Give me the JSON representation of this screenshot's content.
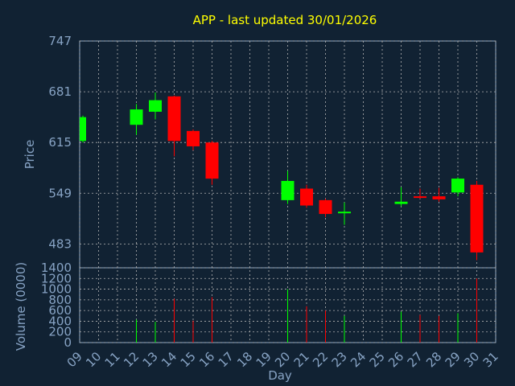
{
  "chart_data": {
    "type": "candlestick",
    "title": "APP - last updated 30/01/2026",
    "colors": {
      "background": "#112233",
      "grid": "#b4b4b4",
      "axis_text": "#87a3c4",
      "title": "#ffff00",
      "up": "#00ff00",
      "down": "#ff0000"
    },
    "price_panel": {
      "ylabel": "Price",
      "ylim": [
        452,
        747
      ],
      "yticks": [
        747,
        681,
        615,
        549,
        483
      ]
    },
    "volume_panel": {
      "ylabel": "Volume (0000)",
      "ylim": [
        0,
        1400
      ],
      "yticks": [
        1400,
        1200,
        1000,
        800,
        600,
        400,
        200,
        0
      ]
    },
    "x_axis": {
      "xlabel": "Day",
      "tick_labels": [
        "09",
        "10",
        "11",
        "12",
        "13",
        "14",
        "15",
        "16",
        "17",
        "18",
        "19",
        "20",
        "21",
        "22",
        "23",
        "24",
        "25",
        "26",
        "27",
        "28",
        "29",
        "30",
        "31"
      ]
    },
    "candles": [
      {
        "day": 9,
        "open": 617,
        "close": 648,
        "high": 650,
        "low": 615,
        "volume": 0
      },
      {
        "day": 12,
        "open": 638,
        "close": 658,
        "high": 665,
        "low": 625,
        "volume": 430
      },
      {
        "day": 13,
        "open": 655,
        "close": 670,
        "high": 680,
        "low": 645,
        "volume": 390
      },
      {
        "day": 14,
        "open": 675,
        "close": 617,
        "high": 676,
        "low": 597,
        "volume": 820
      },
      {
        "day": 15,
        "open": 630,
        "close": 610,
        "high": 632,
        "low": 605,
        "volume": 410
      },
      {
        "day": 16,
        "open": 615,
        "close": 568,
        "high": 617,
        "low": 560,
        "volume": 850
      },
      {
        "day": 20,
        "open": 540,
        "close": 565,
        "high": 578,
        "low": 535,
        "volume": 1000
      },
      {
        "day": 21,
        "open": 555,
        "close": 533,
        "high": 560,
        "low": 530,
        "volume": 680
      },
      {
        "day": 22,
        "open": 540,
        "close": 522,
        "high": 542,
        "low": 518,
        "volume": 600
      },
      {
        "day": 23,
        "open": 523,
        "close": 525,
        "high": 537,
        "low": 508,
        "volume": 500
      },
      {
        "day": 26,
        "open": 535,
        "close": 538,
        "high": 557,
        "low": 532,
        "volume": 580
      },
      {
        "day": 27,
        "open": 545,
        "close": 543,
        "high": 555,
        "low": 542,
        "volume": 520
      },
      {
        "day": 28,
        "open": 545,
        "close": 541,
        "high": 556,
        "low": 538,
        "volume": 500
      },
      {
        "day": 29,
        "open": 550,
        "close": 568,
        "high": 570,
        "low": 545,
        "volume": 550
      },
      {
        "day": 30,
        "open": 560,
        "close": 472,
        "high": 565,
        "low": 462,
        "volume": 1200
      }
    ]
  }
}
